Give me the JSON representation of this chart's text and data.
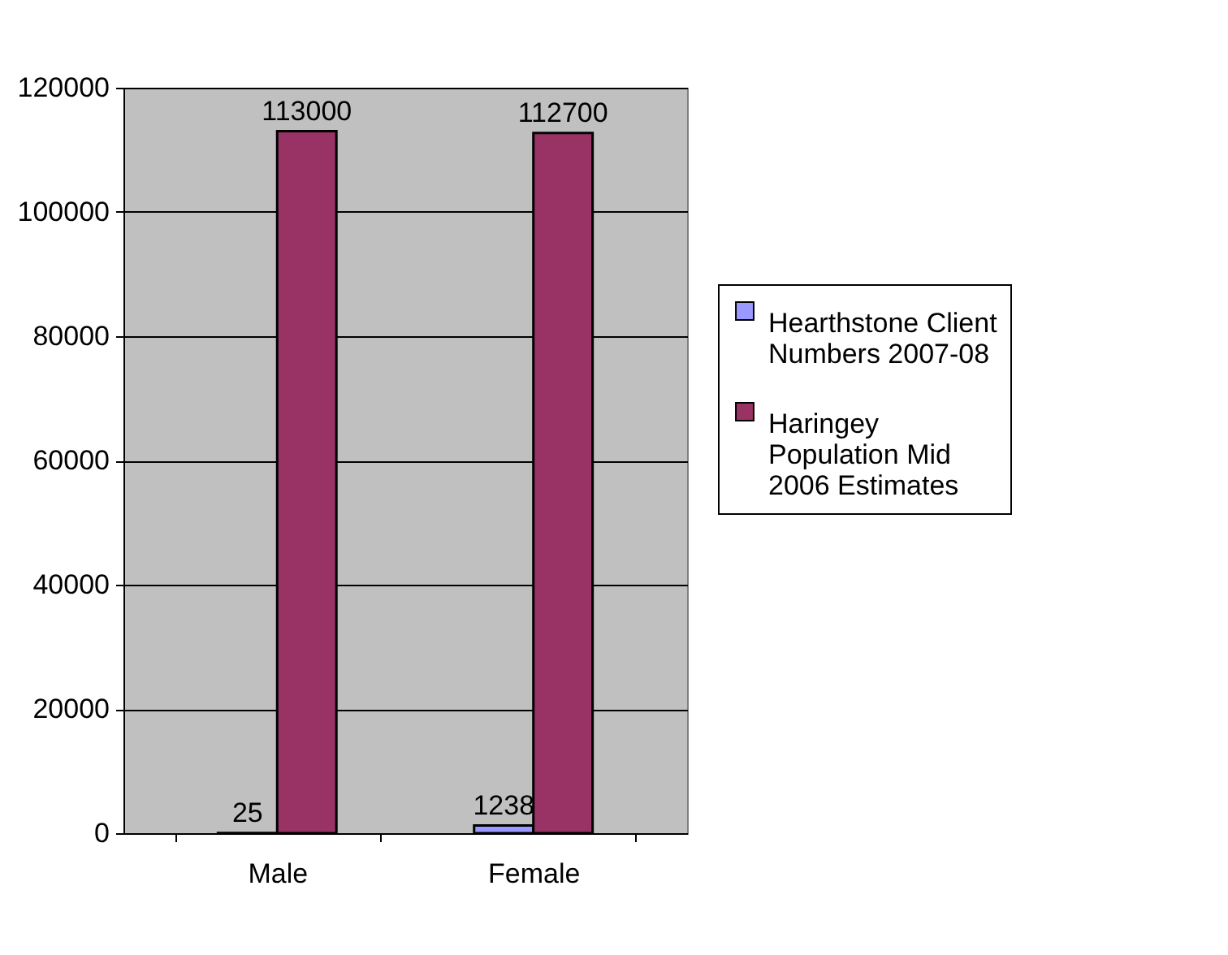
{
  "chart_data": {
    "type": "bar",
    "categories": [
      "Male",
      "Female"
    ],
    "series": [
      {
        "name": "Hearthstone Client Numbers 2007-08",
        "color": "#9999ff",
        "values": [
          25,
          1238
        ]
      },
      {
        "name": "Haringey Population Mid 2006 Estimates",
        "color": "#993366",
        "values": [
          113000,
          112700
        ]
      }
    ],
    "ylim": [
      0,
      120000
    ],
    "yticks": [
      0,
      20000,
      40000,
      60000,
      80000,
      100000,
      120000
    ],
    "grid": "y",
    "legend": "right",
    "data_labels": true
  }
}
